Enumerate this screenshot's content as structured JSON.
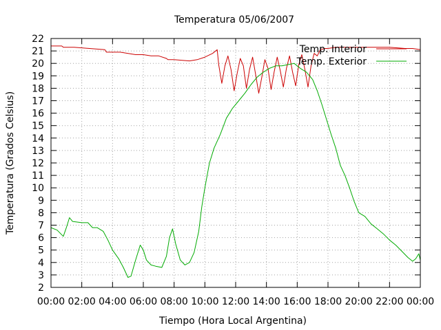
{
  "chart_data": {
    "type": "line",
    "title": "Temperatura 05/06/2007",
    "xlabel": "Tiempo (Hora Local Argentina)",
    "ylabel": "Temperatura (Grados Celsius)",
    "xlim": [
      0,
      24
    ],
    "ylim": [
      2,
      22
    ],
    "x_tick_labels": [
      "00:00",
      "02:00",
      "04:00",
      "06:00",
      "08:00",
      "10:00",
      "12:00",
      "14:00",
      "16:00",
      "18:00",
      "20:00",
      "22:00",
      "00:00"
    ],
    "y_tick_labels": [
      "2",
      "3",
      "4",
      "5",
      "6",
      "7",
      "8",
      "9",
      "10",
      "11",
      "12",
      "13",
      "14",
      "15",
      "16",
      "17",
      "18",
      "19",
      "20",
      "21",
      "22"
    ],
    "grid": true,
    "legend_position": "top-right",
    "series": [
      {
        "name": "Temp. Interior",
        "color": "#cc0000",
        "x": [
          0,
          0.7,
          0.8,
          1.5,
          2.5,
          3.5,
          3.6,
          4.5,
          5.5,
          6.0,
          6.5,
          7.0,
          7.5,
          7.6,
          8.0,
          9.0,
          9.5,
          10.0,
          10.5,
          10.8,
          10.9,
          11.1,
          11.3,
          11.5,
          11.7,
          11.9,
          12.1,
          12.3,
          12.5,
          12.7,
          12.9,
          13.1,
          13.3,
          13.5,
          13.7,
          13.9,
          14.1,
          14.3,
          14.5,
          14.7,
          14.9,
          15.1,
          15.3,
          15.5,
          15.7,
          15.9,
          16.1,
          16.3,
          16.5,
          16.7,
          16.9,
          17.1,
          17.3,
          17.5,
          17.8,
          18.0,
          18.5,
          19.0,
          20.0,
          21.0,
          22.0,
          23.0,
          23.5,
          24.0
        ],
        "y": [
          21.4,
          21.4,
          21.3,
          21.3,
          21.2,
          21.1,
          20.9,
          20.9,
          20.7,
          20.7,
          20.6,
          20.6,
          20.4,
          20.3,
          20.3,
          20.2,
          20.3,
          20.5,
          20.8,
          21.1,
          19.9,
          18.4,
          19.8,
          20.6,
          19.5,
          17.8,
          19.2,
          20.4,
          19.8,
          18.0,
          19.5,
          20.5,
          19.1,
          17.6,
          18.9,
          20.3,
          19.6,
          17.9,
          19.3,
          20.5,
          19.4,
          18.1,
          19.6,
          20.6,
          19.3,
          18.2,
          19.9,
          20.7,
          19.5,
          18.1,
          19.8,
          20.8,
          20.6,
          21.1,
          21.2,
          21.2,
          21.3,
          21.3,
          21.3,
          21.3,
          21.3,
          21.2,
          21.2,
          21.1
        ]
      },
      {
        "name": "Temp. Exterior",
        "color": "#00aa00",
        "x": [
          0,
          0.4,
          0.8,
          1.0,
          1.2,
          1.4,
          2.0,
          2.4,
          2.7,
          3.0,
          3.4,
          3.7,
          4.0,
          4.4,
          4.7,
          5.0,
          5.2,
          5.5,
          5.8,
          6.0,
          6.2,
          6.5,
          6.8,
          7.2,
          7.5,
          7.7,
          7.9,
          8.1,
          8.4,
          8.7,
          9.0,
          9.3,
          9.6,
          9.8,
          10.0,
          10.3,
          10.6,
          11.0,
          11.4,
          11.8,
          12.2,
          12.6,
          13.0,
          13.4,
          13.8,
          14.2,
          14.6,
          15.0,
          15.4,
          15.8,
          16.2,
          16.6,
          17.0,
          17.3,
          17.6,
          17.9,
          18.2,
          18.5,
          18.8,
          19.1,
          19.4,
          19.7,
          20.0,
          20.4,
          20.8,
          21.2,
          21.6,
          22.0,
          22.4,
          22.8,
          23.2,
          23.5,
          23.7,
          23.9,
          24.0
        ],
        "y": [
          6.8,
          6.6,
          6.1,
          6.8,
          7.6,
          7.3,
          7.2,
          7.2,
          6.8,
          6.8,
          6.5,
          5.8,
          5.0,
          4.3,
          3.6,
          2.8,
          2.9,
          4.2,
          5.4,
          5.0,
          4.2,
          3.8,
          3.7,
          3.6,
          4.5,
          6.0,
          6.7,
          5.5,
          4.2,
          3.8,
          4.0,
          4.8,
          6.5,
          8.5,
          10.0,
          12.0,
          13.2,
          14.3,
          15.6,
          16.4,
          17.0,
          17.6,
          18.3,
          18.9,
          19.3,
          19.6,
          19.8,
          19.8,
          19.9,
          20.0,
          19.6,
          19.3,
          18.7,
          17.8,
          16.7,
          15.5,
          14.3,
          13.2,
          11.8,
          11.0,
          10.0,
          8.9,
          8.0,
          7.7,
          7.1,
          6.7,
          6.3,
          5.8,
          5.4,
          4.9,
          4.4,
          4.1,
          4.3,
          4.7,
          4.2
        ]
      }
    ]
  }
}
